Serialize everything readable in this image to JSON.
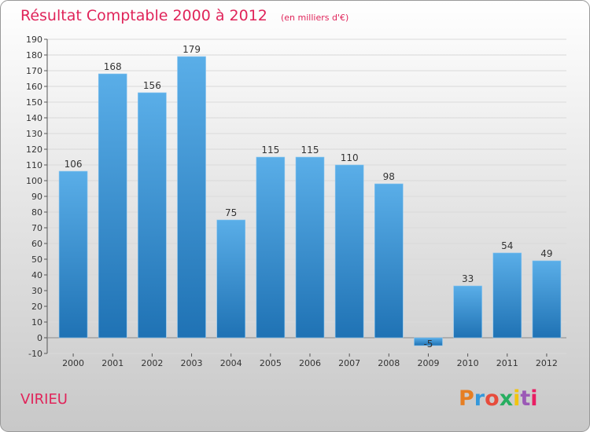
{
  "chart_data": {
    "type": "bar",
    "title": "Résultat Comptable 2000 à 2012",
    "subtitle": "(en milliers d'€)",
    "categories": [
      "2000",
      "2001",
      "2002",
      "2003",
      "2004",
      "2005",
      "2006",
      "2007",
      "2008",
      "2009",
      "2010",
      "2011",
      "2012"
    ],
    "values": [
      106,
      168,
      156,
      179,
      75,
      115,
      115,
      110,
      98,
      -5,
      33,
      54,
      49
    ],
    "ylim": [
      -10,
      190
    ],
    "ytick_step": 10,
    "grid": true,
    "xlabel": "",
    "ylabel": ""
  },
  "footer": {
    "place_name": "VIRIEU",
    "logo_text": "Proxiti"
  },
  "colors": {
    "bar_top": "#5aaee8",
    "bar_bottom": "#1f72b4",
    "title": "#e0245a",
    "background_top": "#ffffff",
    "background_bottom": "#c8c8c8",
    "logo": [
      "#e67e22",
      "#3498db",
      "#e74c3c",
      "#27ae60",
      "#f1c40f",
      "#9b59b6",
      "#e91e63"
    ]
  }
}
